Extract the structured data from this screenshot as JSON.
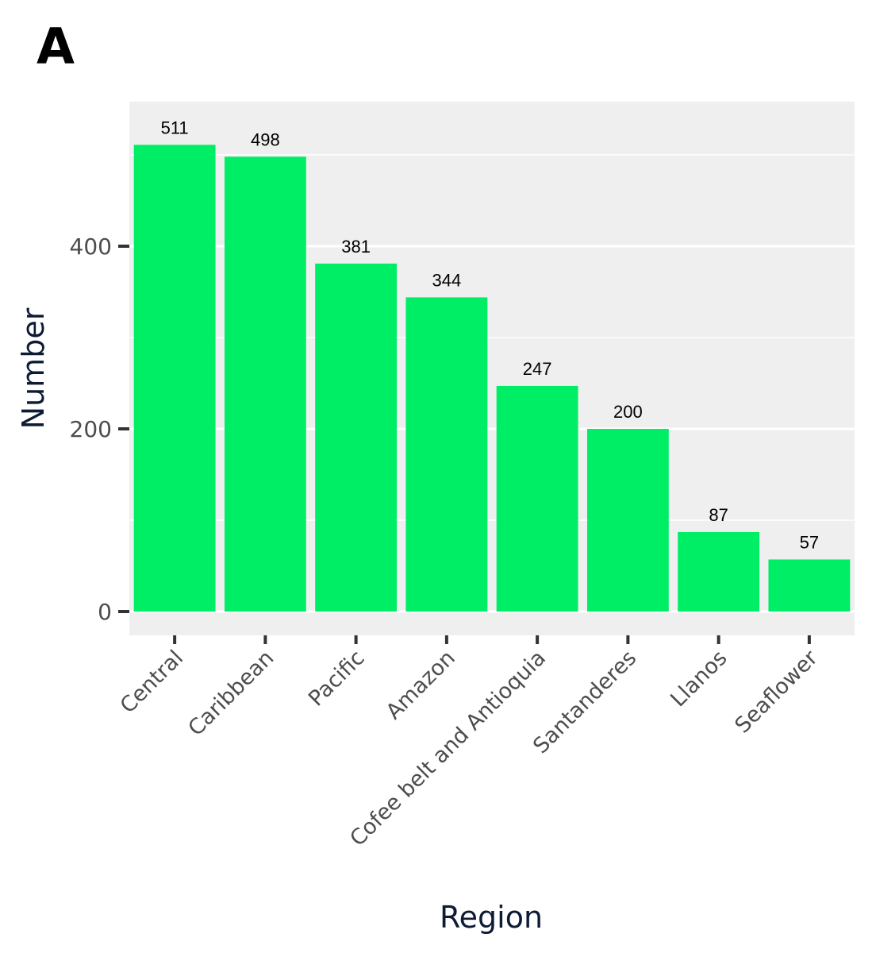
{
  "panel_label": "A",
  "chart_data": {
    "type": "bar",
    "categories": [
      "Central",
      "Caribbean",
      "Pacific",
      "Amazon",
      "Cofee belt and Antioquia",
      "Santanderes",
      "Llanos",
      "Seaflower"
    ],
    "values": [
      511,
      498,
      381,
      344,
      247,
      200,
      87,
      57
    ],
    "data_labels": [
      "511",
      "498",
      "381",
      "344",
      "247",
      "200",
      "87",
      "57"
    ],
    "xlabel": "Region",
    "ylabel": "Number",
    "yticks": [
      0,
      200,
      400
    ],
    "ytick_labels": [
      "0",
      "200",
      "400"
    ],
    "ylim": [
      -26,
      559
    ],
    "minor_gridlines": [
      100,
      300,
      500
    ],
    "grid": true,
    "legend": "none",
    "colors": {
      "bar": "#00ee66",
      "panel_background": "#efefef",
      "gridline": "#ffffff",
      "axis_title": "#0d1b34",
      "tick_text": "#4d4d4d",
      "tick_mark": "#333333"
    }
  }
}
